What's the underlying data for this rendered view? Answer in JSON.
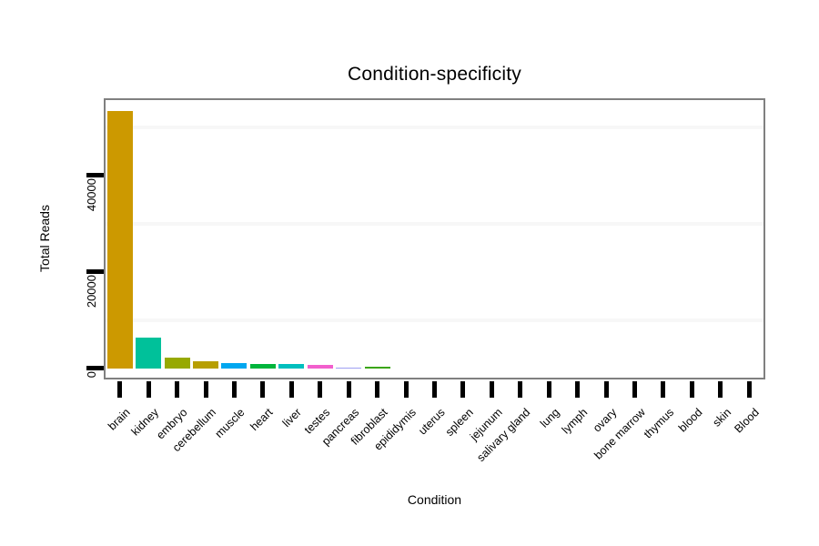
{
  "chart_data": {
    "type": "bar",
    "title": "Condition-specificity",
    "xlabel": "Condition",
    "ylabel": "Total Reads",
    "ylim": [
      0,
      56000
    ],
    "y_ticks": [
      0,
      20000,
      40000
    ],
    "y_minor_gridlines": [
      10000,
      30000,
      50000
    ],
    "legend": "none",
    "grid": "faint horizontal minor gridlines only",
    "bars": [
      {
        "label": "brain",
        "value": 53400,
        "color": "#CC9900"
      },
      {
        "label": "kidney",
        "value": 6500,
        "color": "#00C19A"
      },
      {
        "label": "embryo",
        "value": 2300,
        "color": "#97A900"
      },
      {
        "label": "cerebellum",
        "value": 1450,
        "color": "#B79F00"
      },
      {
        "label": "muscle",
        "value": 1130,
        "color": "#00A7F0"
      },
      {
        "label": "heart",
        "value": 1000,
        "color": "#00B53C"
      },
      {
        "label": "liver",
        "value": 890,
        "color": "#00BFBE"
      },
      {
        "label": "testes",
        "value": 780,
        "color": "#F25FCD"
      },
      {
        "label": "pancreas",
        "value": 280,
        "color": "#9FA0F2"
      },
      {
        "label": "fibroblast",
        "value": 420,
        "color": "#3AA50F"
      },
      {
        "label": "epididymis",
        "value": 0,
        "color": null
      },
      {
        "label": "uterus",
        "value": 0,
        "color": null
      },
      {
        "label": "spleen",
        "value": 0,
        "color": null
      },
      {
        "label": "jejunum",
        "value": 0,
        "color": null
      },
      {
        "label": "salivary gland",
        "value": 0,
        "color": null
      },
      {
        "label": "lung",
        "value": 0,
        "color": null
      },
      {
        "label": "lymph",
        "value": 0,
        "color": null
      },
      {
        "label": "ovary",
        "value": 0,
        "color": null
      },
      {
        "label": "bone marrow",
        "value": 0,
        "color": null
      },
      {
        "label": "thymus",
        "value": 0,
        "color": null
      },
      {
        "label": "blood",
        "value": 0,
        "color": null
      },
      {
        "label": "skin",
        "value": 0,
        "color": null
      },
      {
        "label": "Blood",
        "value": 0,
        "color": null
      }
    ],
    "colors": {
      "panel_border": "#808080",
      "gridline": "#F7F7F7",
      "tick": "#000000",
      "text": "#000000"
    }
  }
}
